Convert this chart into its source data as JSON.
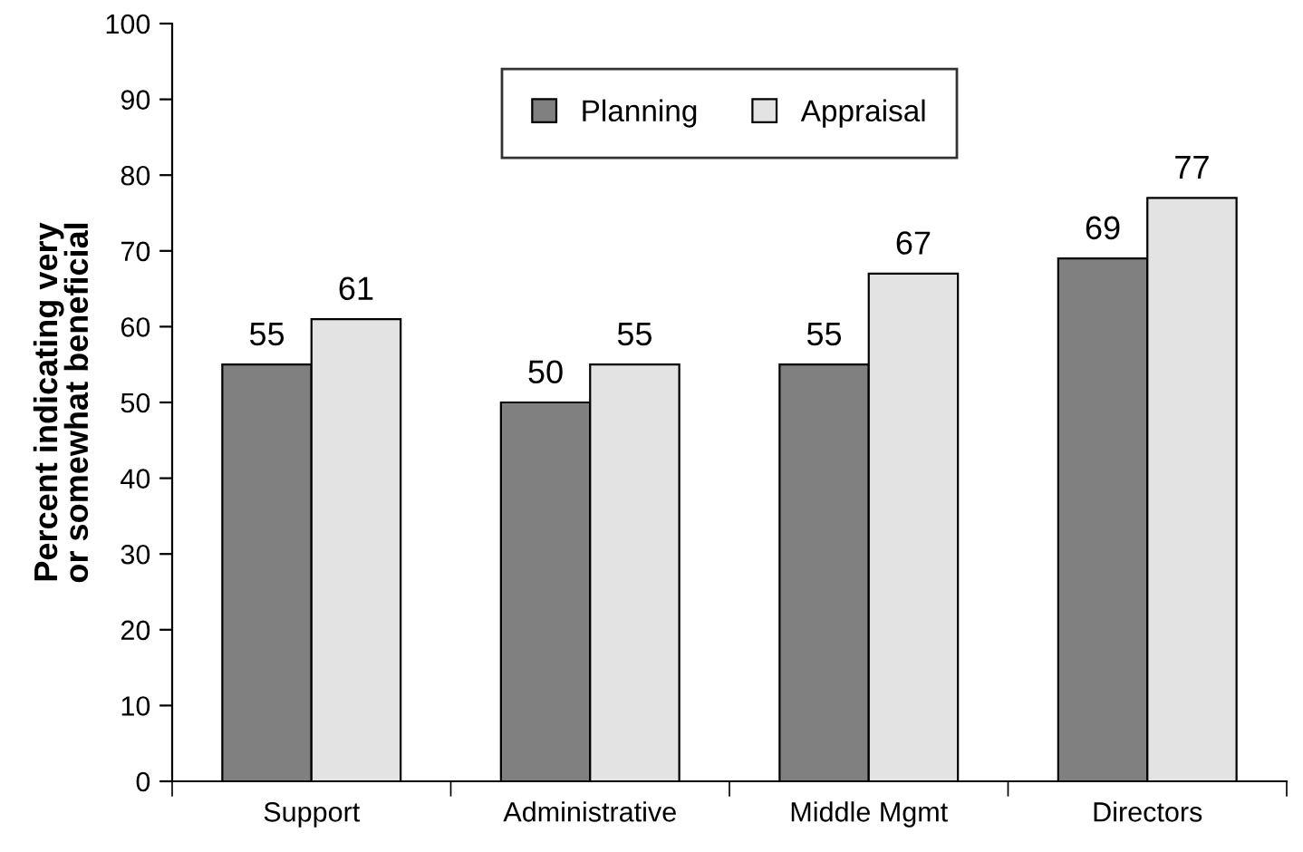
{
  "chart_data": {
    "type": "bar",
    "ylabel": "Percent indicating very\nor somewhat beneficial",
    "categories": [
      "Support",
      "Administrative",
      "Middle Mgmt",
      "Directors"
    ],
    "series": [
      {
        "name": "Planning",
        "color": "#808080",
        "values": [
          55,
          50,
          55,
          69
        ]
      },
      {
        "name": "Appraisal",
        "color": "#e3e3e3",
        "values": [
          61,
          55,
          67,
          77
        ]
      }
    ],
    "ylim": [
      0,
      100
    ],
    "yticks": [
      0,
      10,
      20,
      30,
      40,
      50,
      60,
      70,
      80,
      90,
      100
    ],
    "grid": false,
    "legend": "top",
    "data_labels": true
  }
}
